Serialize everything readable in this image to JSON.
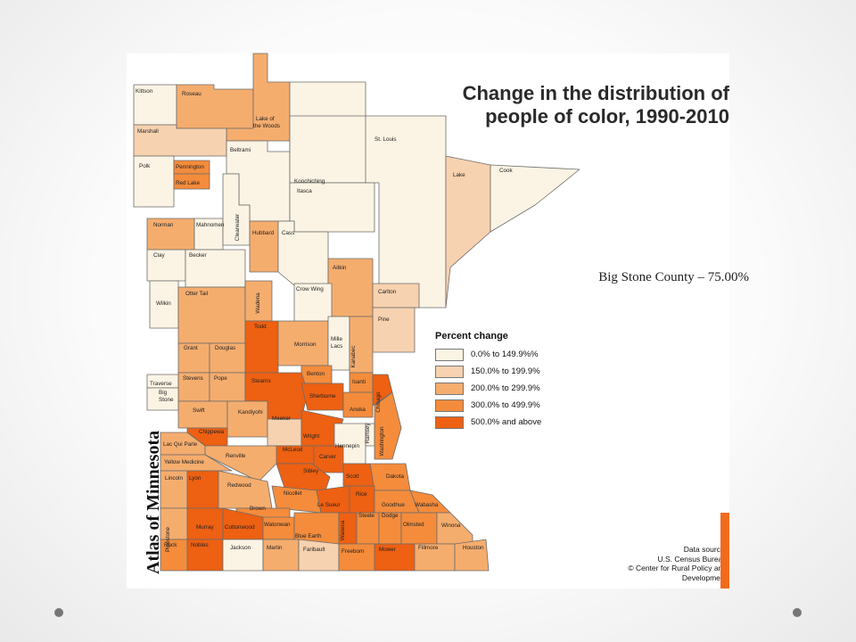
{
  "title_line1": "Change in the distribution of",
  "title_line2": "people of color, 1990-2010",
  "note": "Big Stone County – 75.00%",
  "atlas_label": "Atlas of Minnesota",
  "legend": {
    "title": "Percent change",
    "items": [
      {
        "label": "0.0% to 149.9%%",
        "color": "#fbf4e4"
      },
      {
        "label": "150.0% to 199.9%",
        "color": "#f7d2b0"
      },
      {
        "label": "200.0% to 299.9%",
        "color": "#f5ad6e"
      },
      {
        "label": "300.0% to 499.9%",
        "color": "#f48c3c"
      },
      {
        "label": "500.0% and above",
        "color": "#ee6012"
      }
    ]
  },
  "source": {
    "line1": "Data source:",
    "line2": "U.S. Census Bureau",
    "line3": "© Center for Rural Policy and Development"
  },
  "counties": [
    {
      "name": "Kittson",
      "cls": 0
    },
    {
      "name": "Roseau",
      "cls": 2
    },
    {
      "name": "Lake of the Woods",
      "cls": 2
    },
    {
      "name": "Marshall",
      "cls": 1
    },
    {
      "name": "Beltrami",
      "cls": 0
    },
    {
      "name": "St. Louis",
      "cls": 0
    },
    {
      "name": "Polk",
      "cls": 0
    },
    {
      "name": "Pennington",
      "cls": 3
    },
    {
      "name": "Red Lake",
      "cls": 3
    },
    {
      "name": "Koochiching",
      "cls": 0
    },
    {
      "name": "Itasca",
      "cls": 0
    },
    {
      "name": "Lake",
      "cls": 1
    },
    {
      "name": "Cook",
      "cls": 0
    },
    {
      "name": "Norman",
      "cls": 2
    },
    {
      "name": "Mahnomen",
      "cls": 0
    },
    {
      "name": "Clearwater",
      "cls": 0
    },
    {
      "name": "Hubbard",
      "cls": 2
    },
    {
      "name": "Cass",
      "cls": 0
    },
    {
      "name": "Clay",
      "cls": 0
    },
    {
      "name": "Becker",
      "cls": 0
    },
    {
      "name": "Aitkin",
      "cls": 2
    },
    {
      "name": "Crow Wing",
      "cls": 0
    },
    {
      "name": "Carlton",
      "cls": 1
    },
    {
      "name": "Wilkin",
      "cls": 0
    },
    {
      "name": "Otter Tail",
      "cls": 2
    },
    {
      "name": "Wadena",
      "cls": 2
    },
    {
      "name": "Pine",
      "cls": 1
    },
    {
      "name": "Todd",
      "cls": 4
    },
    {
      "name": "Morrison",
      "cls": 2
    },
    {
      "name": "Mille Lacs",
      "cls": 0
    },
    {
      "name": "Kanabec",
      "cls": 2
    },
    {
      "name": "Grant",
      "cls": 2
    },
    {
      "name": "Douglas",
      "cls": 2
    },
    {
      "name": "Benton",
      "cls": 3
    },
    {
      "name": "Isanti",
      "cls": 3
    },
    {
      "name": "Chisago",
      "cls": 4
    },
    {
      "name": "Traverse",
      "cls": 0
    },
    {
      "name": "Stevens",
      "cls": 2
    },
    {
      "name": "Pope",
      "cls": 2
    },
    {
      "name": "Stearns",
      "cls": 4
    },
    {
      "name": "Sherburne",
      "cls": 4
    },
    {
      "name": "Anoka",
      "cls": 3
    },
    {
      "name": "Big Stone",
      "cls": 0
    },
    {
      "name": "Swift",
      "cls": 2
    },
    {
      "name": "Kandiyohi",
      "cls": 2
    },
    {
      "name": "Meeker",
      "cls": 1
    },
    {
      "name": "Wright",
      "cls": 4
    },
    {
      "name": "Hennepin",
      "cls": 0
    },
    {
      "name": "Ramsey",
      "cls": 0
    },
    {
      "name": "Washington",
      "cls": 3
    },
    {
      "name": "Chippewa",
      "cls": 4
    },
    {
      "name": "Lac Qui Parle",
      "cls": 2
    },
    {
      "name": "McLeod",
      "cls": 4
    },
    {
      "name": "Carver",
      "cls": 4
    },
    {
      "name": "Renville",
      "cls": 2
    },
    {
      "name": "Yellow Medicine",
      "cls": 2
    },
    {
      "name": "Sibley",
      "cls": 4
    },
    {
      "name": "Scott",
      "cls": 4
    },
    {
      "name": "Dakota",
      "cls": 3
    },
    {
      "name": "Lincoln",
      "cls": 2
    },
    {
      "name": "Lyon",
      "cls": 4
    },
    {
      "name": "Redwood",
      "cls": 2
    },
    {
      "name": "Nicollet",
      "cls": 3
    },
    {
      "name": "Le Sueur",
      "cls": 4
    },
    {
      "name": "Rice",
      "cls": 4
    },
    {
      "name": "Goodhue",
      "cls": 3
    },
    {
      "name": "Wabasha",
      "cls": 3
    },
    {
      "name": "Brown",
      "cls": 3
    },
    {
      "name": "Pipestone",
      "cls": 2
    },
    {
      "name": "Murray",
      "cls": 4
    },
    {
      "name": "Cottonwood",
      "cls": 4
    },
    {
      "name": "Watonwan",
      "cls": 3
    },
    {
      "name": "Blue Earth",
      "cls": 3
    },
    {
      "name": "Waseca",
      "cls": 4
    },
    {
      "name": "Steele",
      "cls": 3
    },
    {
      "name": "Dodge",
      "cls": 3
    },
    {
      "name": "Olmsted",
      "cls": 3
    },
    {
      "name": "Winona",
      "cls": 2
    },
    {
      "name": "Rock",
      "cls": 3
    },
    {
      "name": "Nobles",
      "cls": 4
    },
    {
      "name": "Jackson",
      "cls": 0
    },
    {
      "name": "Martin",
      "cls": 2
    },
    {
      "name": "Faribault",
      "cls": 1
    },
    {
      "name": "Freeborn",
      "cls": 3
    },
    {
      "name": "Mower",
      "cls": 4
    },
    {
      "name": "Fillmore",
      "cls": 2
    },
    {
      "name": "Houston",
      "cls": 2
    }
  ]
}
